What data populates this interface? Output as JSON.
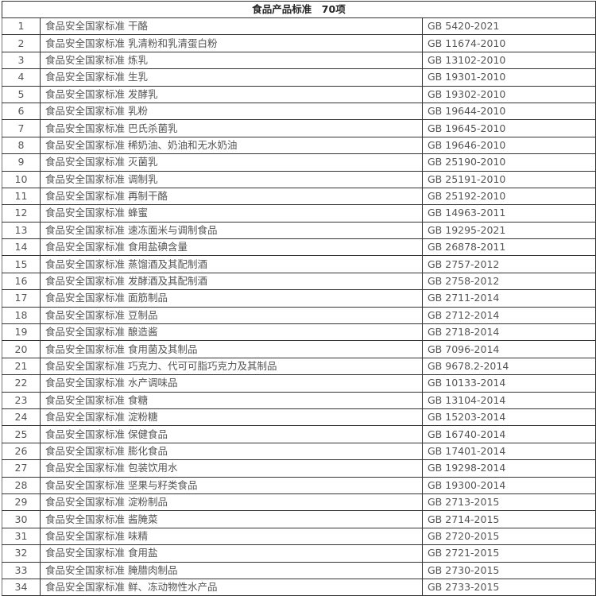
{
  "header": {
    "title": "食品产品标准　70项"
  },
  "prefix": "食品安全国家标准",
  "rows": [
    {
      "no": "1",
      "name": "食品安全国家标准  干酪",
      "code": "GB 5420-2021"
    },
    {
      "no": "2",
      "name": "食品安全国家标准  乳清粉和乳清蛋白粉",
      "code": "GB 11674-2010"
    },
    {
      "no": "3",
      "name": "食品安全国家标准  炼乳",
      "code": "GB 13102-2010"
    },
    {
      "no": "4",
      "name": "食品安全国家标准  生乳",
      "code": "GB 19301-2010"
    },
    {
      "no": "5",
      "name": "食品安全国家标准  发酵乳",
      "code": "GB 19302-2010"
    },
    {
      "no": "6",
      "name": "食品安全国家标准  乳粉",
      "code": "GB 19644-2010"
    },
    {
      "no": "7",
      "name": "食品安全国家标准  巴氏杀菌乳",
      "code": "GB 19645-2010"
    },
    {
      "no": "8",
      "name": "食品安全国家标准  稀奶油、奶油和无水奶油",
      "code": "GB 19646-2010"
    },
    {
      "no": "9",
      "name": "食品安全国家标准  灭菌乳",
      "code": "GB 25190-2010"
    },
    {
      "no": "10",
      "name": "食品安全国家标准  调制乳",
      "code": "GB 25191-2010"
    },
    {
      "no": "11",
      "name": "食品安全国家标准  再制干酪",
      "code": "GB 25192-2010"
    },
    {
      "no": "12",
      "name": "食品安全国家标准  蜂蜜",
      "code": "GB 14963-2011"
    },
    {
      "no": "13",
      "name": "食品安全国家标准  速冻面米与调制食品",
      "code": "GB 19295-2021"
    },
    {
      "no": "14",
      "name": "食品安全国家标准  食用盐碘含量",
      "code": "GB 26878-2011"
    },
    {
      "no": "15",
      "name": "食品安全国家标准  蒸馏酒及其配制酒",
      "code": "GB 2757-2012"
    },
    {
      "no": "16",
      "name": "食品安全国家标准  发酵酒及其配制酒",
      "code": "GB 2758-2012"
    },
    {
      "no": "17",
      "name": "食品安全国家标准  面筋制品",
      "code": "GB 2711-2014"
    },
    {
      "no": "18",
      "name": "食品安全国家标准  豆制品",
      "code": "GB 2712-2014"
    },
    {
      "no": "19",
      "name": "食品安全国家标准  酿造酱",
      "code": "GB 2718-2014"
    },
    {
      "no": "20",
      "name": "食品安全国家标准  食用菌及其制品",
      "code": "GB 7096-2014"
    },
    {
      "no": "21",
      "name": "食品安全国家标准  巧克力、代可可脂巧克力及其制品",
      "code": "GB 9678.2-2014"
    },
    {
      "no": "22",
      "name": "食品安全国家标准  水产调味品",
      "code": "GB 10133-2014"
    },
    {
      "no": "23",
      "name": "食品安全国家标准  食糖",
      "code": "GB 13104-2014"
    },
    {
      "no": "24",
      "name": "食品安全国家标准  淀粉糖",
      "code": "GB 15203-2014"
    },
    {
      "no": "25",
      "name": "食品安全国家标准  保健食品",
      "code": "GB 16740-2014"
    },
    {
      "no": "26",
      "name": "食品安全国家标准  膨化食品",
      "code": "GB 17401-2014"
    },
    {
      "no": "27",
      "name": "食品安全国家标准  包装饮用水",
      "code": "GB 19298-2014"
    },
    {
      "no": "28",
      "name": "食品安全国家标准  坚果与籽类食品",
      "code": "GB 19300-2014"
    },
    {
      "no": "29",
      "name": "食品安全国家标准  淀粉制品",
      "code": "GB 2713-2015"
    },
    {
      "no": "30",
      "name": "食品安全国家标准  酱腌菜",
      "code": "GB 2714-2015"
    },
    {
      "no": "31",
      "name": "食品安全国家标准  味精",
      "code": "GB 2720-2015"
    },
    {
      "no": "32",
      "name": "食品安全国家标准  食用盐",
      "code": "GB 2721-2015"
    },
    {
      "no": "33",
      "name": "食品安全国家标准  腌腊肉制品",
      "code": "GB 2730-2015"
    },
    {
      "no": "34",
      "name": "食品安全国家标准  鲜、冻动物性水产品",
      "code": "GB 2733-2015"
    }
  ]
}
